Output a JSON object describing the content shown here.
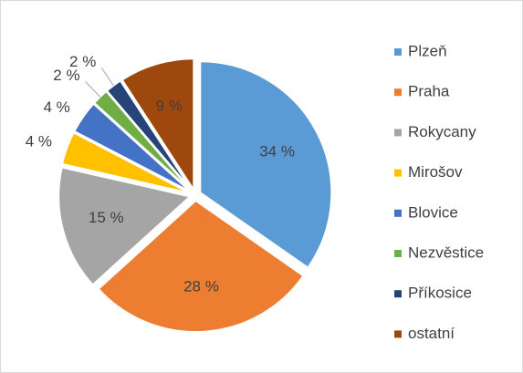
{
  "chart_data": {
    "type": "pie",
    "categories": [
      "Plzeň",
      "Praha",
      "Rokycany",
      "Mirošov",
      "Blovice",
      "Nezvěstice",
      "Příkosice",
      "ostatní"
    ],
    "values": [
      34,
      28,
      15,
      4,
      4,
      2,
      2,
      9
    ],
    "value_labels": [
      "34 %",
      "28 %",
      "15 %",
      "4 %",
      "4 %",
      "2 %",
      "2 %",
      "9 %"
    ],
    "colors": [
      "#5B9BD5",
      "#ED7D31",
      "#A5A5A5",
      "#FFC000",
      "#4472C4",
      "#70AD47",
      "#264478",
      "#9E480E"
    ],
    "legend": "right"
  }
}
